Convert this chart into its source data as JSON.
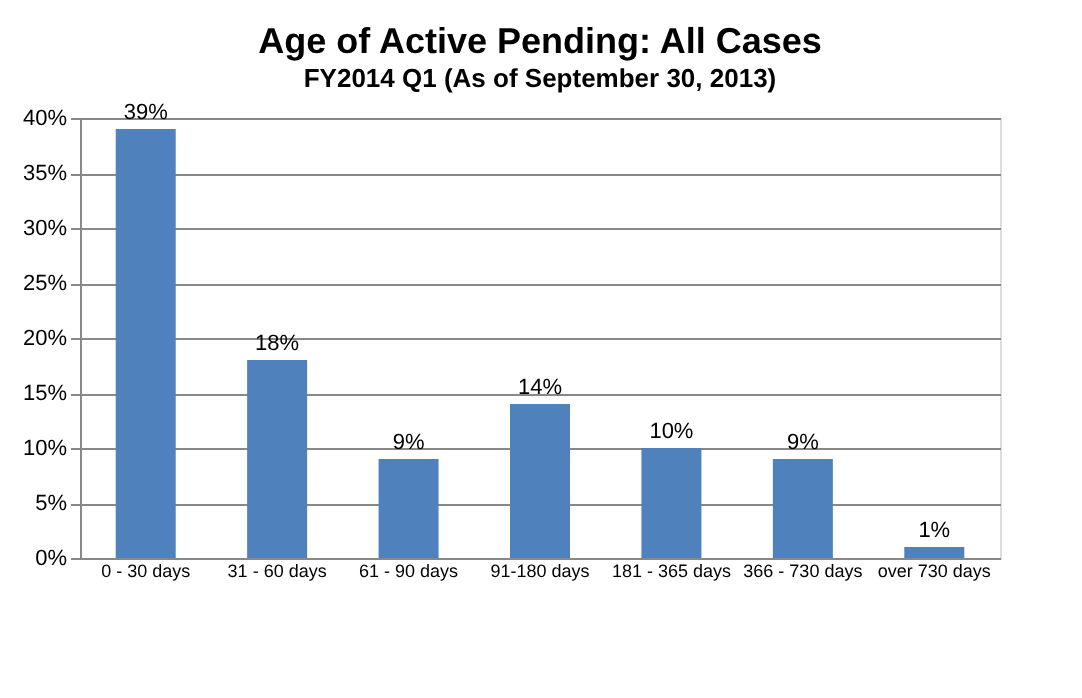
{
  "chart_data": {
    "type": "bar",
    "title": "Age of Active Pending: All Cases",
    "subtitle": "FY2014 Q1 (As of September 30, 2013)",
    "categories": [
      "0 - 30 days",
      "31 - 60 days",
      "61 - 90 days",
      "91-180 days",
      "181 - 365 days",
      "366 - 730 days",
      "over 730 days"
    ],
    "values": [
      39,
      18,
      9,
      14,
      10,
      9,
      1
    ],
    "value_labels": [
      "39%",
      "18%",
      "9%",
      "14%",
      "10%",
      "9%",
      "1%"
    ],
    "color": "#4f81bd",
    "ylim": [
      0,
      40
    ],
    "yticks": [
      {
        "value": 0,
        "label": "0%"
      },
      {
        "value": 5,
        "label": "5%"
      },
      {
        "value": 10,
        "label": "10%"
      },
      {
        "value": 15,
        "label": "15%"
      },
      {
        "value": 20,
        "label": "20%"
      },
      {
        "value": 25,
        "label": "25%"
      },
      {
        "value": 30,
        "label": "30%"
      },
      {
        "value": 35,
        "label": "35%"
      },
      {
        "value": 40,
        "label": "40%"
      }
    ],
    "grid": "y"
  }
}
